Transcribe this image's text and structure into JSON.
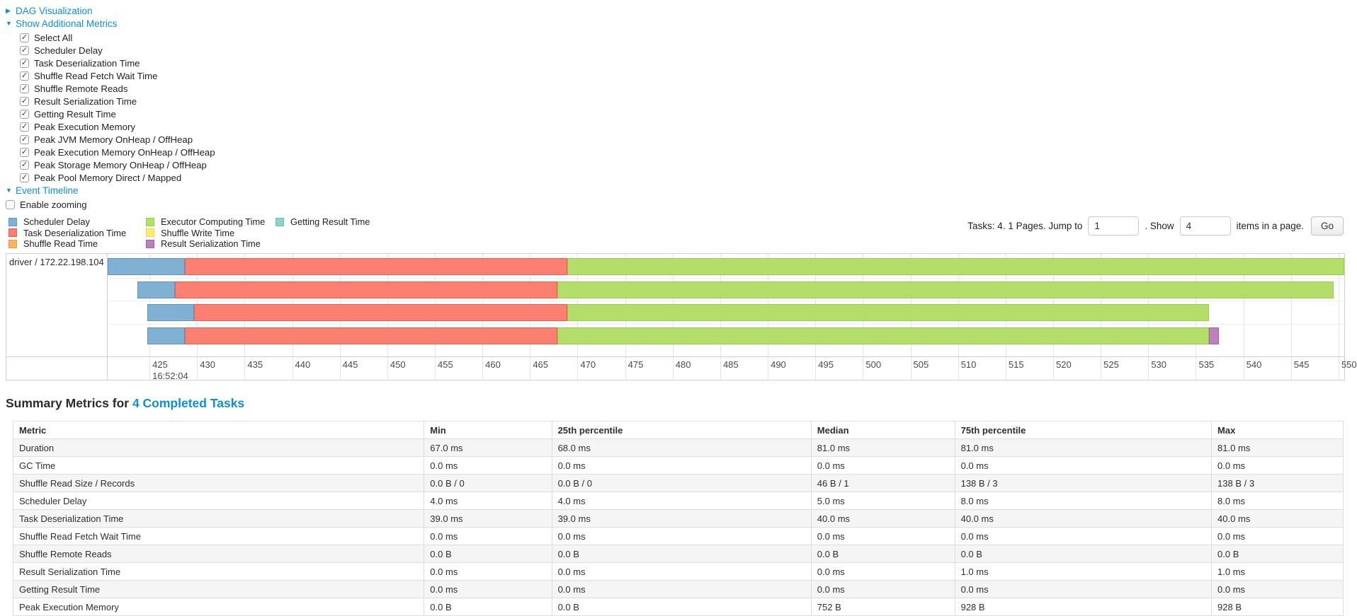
{
  "links": {
    "dag": "DAG Visualization",
    "additional_metrics": "Show Additional Metrics",
    "event_timeline": "Event Timeline"
  },
  "metric_checkboxes": [
    "Select All",
    "Scheduler Delay",
    "Task Deserialization Time",
    "Shuffle Read Fetch Wait Time",
    "Shuffle Remote Reads",
    "Result Serialization Time",
    "Getting Result Time",
    "Peak Execution Memory",
    "Peak JVM Memory OnHeap / OffHeap",
    "Peak Execution Memory OnHeap / OffHeap",
    "Peak Storage Memory OnHeap / OffHeap",
    "Peak Pool Memory Direct / Mapped"
  ],
  "enable_zooming_label": "Enable zooming",
  "pagination": {
    "prefix": "Tasks: 4. 1 Pages. Jump to",
    "page_value": "1",
    "show_label": ". Show",
    "page_size_value": "4",
    "suffix": "items in a page.",
    "go_label": "Go"
  },
  "segment_types": {
    "scheduler_delay": {
      "label": "Scheduler Delay",
      "fill": "#80B1D3",
      "border": "#5d96c0"
    },
    "task_deserialization": {
      "label": "Task Deserialization Time",
      "fill": "#FB8072",
      "border": "#e8604f"
    },
    "shuffle_read": {
      "label": "Shuffle Read Time",
      "fill": "#FDB462",
      "border": "#eb9a38"
    },
    "executor_computing": {
      "label": "Executor Computing Time",
      "fill": "#B3DE69",
      "border": "#9acb49"
    },
    "shuffle_write": {
      "label": "Shuffle Write Time",
      "fill": "#FFED6F",
      "border": "#e8d84a"
    },
    "result_serialization": {
      "label": "Result Serialization Time",
      "fill": "#BC80BD",
      "border": "#a55ea7"
    },
    "getting_result": {
      "label": "Getting Result Time",
      "fill": "#8DD3C7",
      "border": "#68c0b0"
    }
  },
  "legend_columns": [
    [
      "scheduler_delay",
      "task_deserialization",
      "shuffle_read"
    ],
    [
      "executor_computing",
      "shuffle_write",
      "result_serialization"
    ],
    [
      "getting_result"
    ]
  ],
  "chart_data": {
    "type": "timeline",
    "group_label": "driver / 172.22.198.104",
    "x_start": 420.6,
    "x_end": 550.6,
    "tick_step": 5,
    "ticks": [
      425,
      430,
      435,
      440,
      445,
      450,
      455,
      460,
      465,
      470,
      475,
      480,
      485,
      490,
      495,
      500,
      505,
      510,
      515,
      520,
      525,
      530,
      535,
      540,
      545,
      550
    ],
    "axis_date_label": "16:52:04",
    "tasks": [
      {
        "segments": [
          {
            "type": "scheduler_delay",
            "start": 420.6,
            "end": 428.7
          },
          {
            "type": "task_deserialization",
            "start": 428.7,
            "end": 468.9
          },
          {
            "type": "executor_computing",
            "start": 468.9,
            "end": 550.6
          }
        ]
      },
      {
        "segments": [
          {
            "type": "scheduler_delay",
            "start": 423.7,
            "end": 427.7
          },
          {
            "type": "task_deserialization",
            "start": 427.7,
            "end": 467.9
          },
          {
            "type": "executor_computing",
            "start": 467.9,
            "end": 549.5
          }
        ]
      },
      {
        "segments": [
          {
            "type": "scheduler_delay",
            "start": 424.8,
            "end": 429.7
          },
          {
            "type": "task_deserialization",
            "start": 429.7,
            "end": 468.9
          },
          {
            "type": "executor_computing",
            "start": 468.9,
            "end": 536.4
          }
        ]
      },
      {
        "segments": [
          {
            "type": "scheduler_delay",
            "start": 424.8,
            "end": 428.7
          },
          {
            "type": "task_deserialization",
            "start": 428.7,
            "end": 467.9
          },
          {
            "type": "executor_computing",
            "start": 467.9,
            "end": 536.4
          },
          {
            "type": "result_serialization",
            "start": 536.4,
            "end": 537.4
          }
        ]
      }
    ]
  },
  "summary": {
    "title_prefix": "Summary Metrics for ",
    "title_link": "4 Completed Tasks",
    "table": {
      "headers": [
        "Metric",
        "Min",
        "25th percentile",
        "Median",
        "75th percentile",
        "Max"
      ],
      "rows": [
        {
          "metric": "Duration",
          "values": [
            "67.0 ms",
            "68.0 ms",
            "81.0 ms",
            "81.0 ms",
            "81.0 ms"
          ]
        },
        {
          "metric": "GC Time",
          "values": [
            "0.0 ms",
            "0.0 ms",
            "0.0 ms",
            "0.0 ms",
            "0.0 ms"
          ]
        },
        {
          "metric": "Shuffle Read Size / Records",
          "values": [
            "0.0 B / 0",
            "0.0 B / 0",
            "46 B / 1",
            "138 B / 3",
            "138 B / 3"
          ]
        },
        {
          "metric": "Scheduler Delay",
          "values": [
            "4.0 ms",
            "4.0 ms",
            "5.0 ms",
            "8.0 ms",
            "8.0 ms"
          ]
        },
        {
          "metric": "Task Deserialization Time",
          "values": [
            "39.0 ms",
            "39.0 ms",
            "40.0 ms",
            "40.0 ms",
            "40.0 ms"
          ]
        },
        {
          "metric": "Shuffle Read Fetch Wait Time",
          "values": [
            "0.0 ms",
            "0.0 ms",
            "0.0 ms",
            "0.0 ms",
            "0.0 ms"
          ]
        },
        {
          "metric": "Shuffle Remote Reads",
          "values": [
            "0.0 B",
            "0.0 B",
            "0.0 B",
            "0.0 B",
            "0.0 B"
          ]
        },
        {
          "metric": "Result Serialization Time",
          "values": [
            "0.0 ms",
            "0.0 ms",
            "0.0 ms",
            "1.0 ms",
            "1.0 ms"
          ]
        },
        {
          "metric": "Getting Result Time",
          "values": [
            "0.0 ms",
            "0.0 ms",
            "0.0 ms",
            "0.0 ms",
            "0.0 ms"
          ]
        },
        {
          "metric": "Peak Execution Memory",
          "values": [
            "0.0 B",
            "0.0 B",
            "752 B",
            "928 B",
            "928 B"
          ]
        }
      ]
    }
  }
}
